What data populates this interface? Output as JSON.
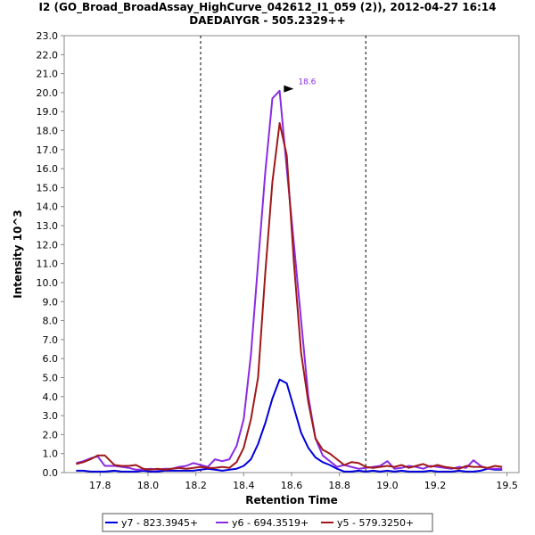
{
  "chart_data": {
    "type": "line",
    "title": "I2 (GO_Broad_BroadAssay_HighCurve_042612_I1_059 (2)), 2012-04-27 16:14",
    "subtitle": "DAEDAIYGR - 505.2329++",
    "xlabel": "Retention Time",
    "ylabel": "Intensity 10^3",
    "xlim": [
      17.65,
      19.55
    ],
    "ylim": [
      0,
      23
    ],
    "xticks": [
      "17.8",
      "18.0",
      "18.2",
      "18.4",
      "18.6",
      "18.8",
      "19.0",
      "19.2",
      "19.5"
    ],
    "xtick_values": [
      17.8,
      18.0,
      18.2,
      18.4,
      18.6,
      18.8,
      19.0,
      19.2,
      19.5
    ],
    "yticks": [
      "0.0",
      "1.0",
      "2.0",
      "3.0",
      "4.0",
      "5.0",
      "6.0",
      "7.0",
      "8.0",
      "9.0",
      "10.0",
      "11.0",
      "12.0",
      "13.0",
      "14.0",
      "15.0",
      "16.0",
      "17.0",
      "18.0",
      "19.0",
      "20.0",
      "21.0",
      "22.0",
      "23.0"
    ],
    "ytick_values": [
      0,
      1,
      2,
      3,
      4,
      5,
      6,
      7,
      8,
      9,
      10,
      11,
      12,
      13,
      14,
      15,
      16,
      17,
      18,
      19,
      20,
      21,
      22,
      23
    ],
    "grid": false,
    "legend_position": "bottom",
    "vlines": [
      18.22,
      18.91
    ],
    "annotation": {
      "text": "18.6",
      "x": 18.62,
      "y": 20.2
    },
    "series": [
      {
        "name": "y7 - 823.3945+",
        "color": "#0000dd",
        "x": [
          17.7,
          17.73,
          17.76,
          17.79,
          17.82,
          17.86,
          17.89,
          17.92,
          17.95,
          17.98,
          18.01,
          18.04,
          18.07,
          18.1,
          18.13,
          18.16,
          18.19,
          18.22,
          18.25,
          18.28,
          18.31,
          18.34,
          18.37,
          18.4,
          18.43,
          18.46,
          18.49,
          18.52,
          18.55,
          18.58,
          18.61,
          18.64,
          18.67,
          18.7,
          18.73,
          18.76,
          18.79,
          18.82,
          18.85,
          18.88,
          18.91,
          18.94,
          18.97,
          19.0,
          19.03,
          19.06,
          19.09,
          19.12,
          19.15,
          19.18,
          19.21,
          19.24,
          19.27,
          19.3,
          19.33,
          19.36,
          19.39,
          19.42,
          19.45,
          19.48
        ],
        "values": [
          0.1,
          0.1,
          0.05,
          0.05,
          0.05,
          0.1,
          0.05,
          0.05,
          0.05,
          0.1,
          0.05,
          0.05,
          0.1,
          0.1,
          0.1,
          0.1,
          0.1,
          0.15,
          0.2,
          0.15,
          0.1,
          0.15,
          0.2,
          0.35,
          0.7,
          1.5,
          2.6,
          3.9,
          4.9,
          4.7,
          3.4,
          2.1,
          1.3,
          0.8,
          0.55,
          0.4,
          0.2,
          0.05,
          0.05,
          0.1,
          0.05,
          0.1,
          0.05,
          0.1,
          0.05,
          0.1,
          0.05,
          0.05,
          0.05,
          0.1,
          0.05,
          0.05,
          0.05,
          0.1,
          0.05,
          0.05,
          0.1,
          0.2,
          0.15,
          0.15
        ]
      },
      {
        "name": "y6 - 694.3519+",
        "color": "#8a2be2",
        "x": [
          17.7,
          17.73,
          17.76,
          17.79,
          17.82,
          17.86,
          17.89,
          17.92,
          17.95,
          17.98,
          18.01,
          18.04,
          18.07,
          18.1,
          18.13,
          18.16,
          18.19,
          18.22,
          18.25,
          18.28,
          18.31,
          18.34,
          18.37,
          18.4,
          18.43,
          18.46,
          18.49,
          18.52,
          18.55,
          18.58,
          18.61,
          18.64,
          18.67,
          18.7,
          18.73,
          18.76,
          18.79,
          18.82,
          18.85,
          18.88,
          18.91,
          18.94,
          18.97,
          19.0,
          19.03,
          19.06,
          19.09,
          19.12,
          19.15,
          19.18,
          19.21,
          19.24,
          19.27,
          19.3,
          19.33,
          19.36,
          19.39,
          19.42,
          19.45,
          19.48
        ],
        "values": [
          0.5,
          0.6,
          0.75,
          0.85,
          0.35,
          0.35,
          0.3,
          0.25,
          0.15,
          0.15,
          0.2,
          0.15,
          0.2,
          0.2,
          0.3,
          0.35,
          0.5,
          0.4,
          0.3,
          0.7,
          0.6,
          0.7,
          1.4,
          2.8,
          6.2,
          11.0,
          15.8,
          19.7,
          20.1,
          16.0,
          12.0,
          8.0,
          4.0,
          1.8,
          0.9,
          0.6,
          0.3,
          0.4,
          0.3,
          0.2,
          0.25,
          0.3,
          0.35,
          0.6,
          0.2,
          0.25,
          0.35,
          0.3,
          0.2,
          0.35,
          0.3,
          0.25,
          0.2,
          0.3,
          0.25,
          0.65,
          0.35,
          0.2,
          0.2,
          0.2
        ]
      },
      {
        "name": "y5 - 579.3250+",
        "color": "#a01818",
        "x": [
          17.7,
          17.73,
          17.76,
          17.79,
          17.82,
          17.86,
          17.89,
          17.92,
          17.95,
          17.98,
          18.01,
          18.04,
          18.07,
          18.1,
          18.13,
          18.16,
          18.19,
          18.22,
          18.25,
          18.28,
          18.31,
          18.34,
          18.37,
          18.4,
          18.43,
          18.46,
          18.49,
          18.52,
          18.55,
          18.58,
          18.61,
          18.64,
          18.67,
          18.7,
          18.73,
          18.76,
          18.79,
          18.82,
          18.85,
          18.88,
          18.91,
          18.94,
          18.97,
          19.0,
          19.03,
          19.06,
          19.09,
          19.12,
          19.15,
          19.18,
          19.21,
          19.24,
          19.27,
          19.3,
          19.33,
          19.36,
          19.39,
          19.42,
          19.45,
          19.48
        ],
        "values": [
          0.45,
          0.55,
          0.7,
          0.9,
          0.9,
          0.4,
          0.35,
          0.35,
          0.4,
          0.2,
          0.15,
          0.2,
          0.15,
          0.2,
          0.25,
          0.2,
          0.25,
          0.3,
          0.25,
          0.25,
          0.3,
          0.25,
          0.55,
          1.3,
          2.8,
          5.0,
          10.5,
          15.3,
          18.4,
          16.7,
          11.0,
          6.3,
          3.7,
          1.8,
          1.2,
          1.0,
          0.7,
          0.4,
          0.55,
          0.5,
          0.3,
          0.25,
          0.3,
          0.35,
          0.3,
          0.4,
          0.25,
          0.35,
          0.45,
          0.3,
          0.4,
          0.3,
          0.25,
          0.2,
          0.35,
          0.3,
          0.3,
          0.25,
          0.35,
          0.3
        ]
      }
    ]
  }
}
